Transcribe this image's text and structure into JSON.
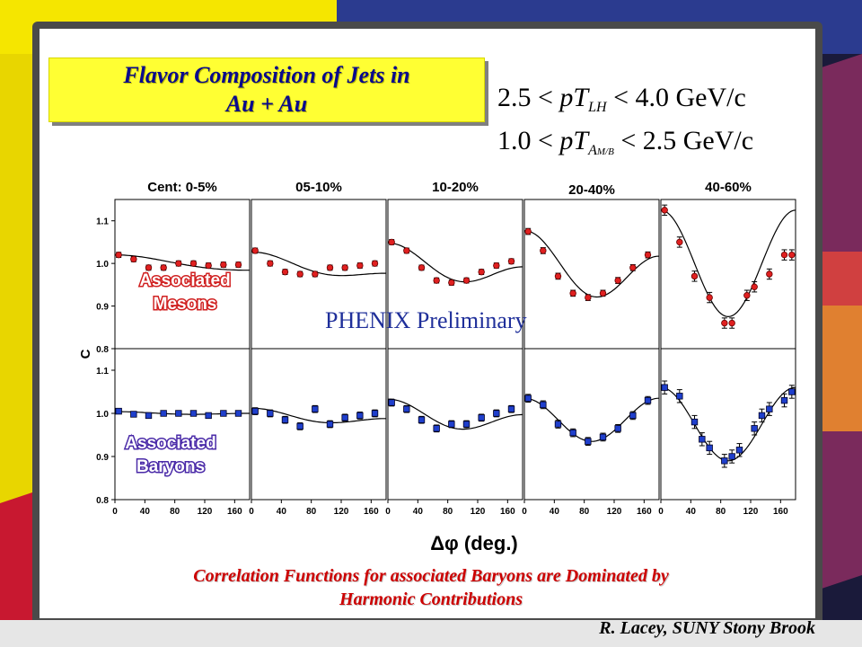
{
  "slide": {
    "title_line1": "Flavor Composition of Jets in",
    "title_line2": "Au + Au",
    "kinematics_line1": {
      "lhs": "2.5 <",
      "var": "pT",
      "sub": "LH",
      "rhs": "< 4.0 GeV/c"
    },
    "kinematics_line2": {
      "lhs": "1.0 <",
      "var": "pT",
      "sub": "A",
      "subsub": "M/B",
      "rhs": "< 2.5 GeV/c"
    },
    "preliminary": "PHENIX Preliminary",
    "footer_line1": "Correlation Functions for associated Baryons are Dominated by",
    "footer_line2": "Harmonic Contributions",
    "credit": "R. Lacey, SUNY Stony Brook",
    "colors": {
      "title_bg": "#ffff33",
      "title_text": "#0a0a8c",
      "footer_text": "#cc0000",
      "meson_marker": "#e02020",
      "baryon_marker": "#1f3fcc",
      "badge_text": "#ffffff",
      "badge_meson_stroke": "#d02020",
      "badge_baryon_stroke": "#4a2aa8"
    }
  },
  "chart_data": {
    "type": "scatter",
    "xlabel": "Δφ (deg.)",
    "ylabel": "C",
    "xlim": [
      0,
      180
    ],
    "ylim": [
      0.8,
      1.15
    ],
    "xticks": [
      "0",
      "40",
      "80",
      "120",
      "160"
    ],
    "yticks": [
      "0.8",
      "0.9",
      "1.0",
      "1.1"
    ],
    "panel_titles": [
      "Cent: 0-5%",
      "05-10%",
      "10-20%",
      "20-40%",
      "40-60%"
    ],
    "row_labels": [
      [
        "Associated",
        "Mesons"
      ],
      [
        "Associated",
        "Baryons"
      ]
    ],
    "x": [
      5,
      15,
      25,
      35,
      45,
      55,
      65,
      75,
      85,
      95,
      105,
      115,
      125,
      135,
      145,
      155,
      165,
      175
    ],
    "series": [
      {
        "name": "Associated Mesons",
        "marker": "circle",
        "panels": [
          {
            "x": [
              5,
              25,
              45,
              65,
              85,
              105,
              125,
              145,
              165
            ],
            "y": [
              1.02,
              1.01,
              0.99,
              0.99,
              1.0,
              1.0,
              0.995,
              0.997,
              0.997
            ],
            "err": 0.006,
            "fit": [
              1.0,
              0.018,
              0.002
            ]
          },
          {
            "x": [
              5,
              25,
              45,
              65,
              85,
              105,
              125,
              145,
              165
            ],
            "y": [
              1.03,
              1.0,
              0.98,
              0.975,
              0.975,
              0.99,
              0.99,
              0.995,
              1.0
            ],
            "err": 0.006,
            "fit": [
              0.99,
              0.025,
              0.012
            ]
          },
          {
            "x": [
              5,
              25,
              45,
              65,
              85,
              105,
              125,
              145,
              165
            ],
            "y": [
              1.05,
              1.03,
              0.99,
              0.96,
              0.955,
              0.96,
              0.98,
              0.995,
              1.005
            ],
            "err": 0.006,
            "fit": [
              0.99,
              0.028,
              0.03
            ]
          },
          {
            "x": [
              5,
              25,
              45,
              65,
              85,
              105,
              125,
              145,
              165
            ],
            "y": [
              1.075,
              1.03,
              0.97,
              0.93,
              0.92,
              0.93,
              0.96,
              0.99,
              1.02
            ],
            "err": 0.007,
            "fit": [
              0.985,
              0.03,
              0.062
            ]
          },
          {
            "x": [
              5,
              25,
              45,
              65,
              85,
              95,
              115,
              125,
              145,
              165,
              175
            ],
            "y": [
              1.125,
              1.05,
              0.97,
              0.92,
              0.86,
              0.86,
              0.925,
              0.945,
              0.975,
              1.02,
              1.02
            ],
            "err": 0.012,
            "fit": [
              1.0,
              0.0,
              0.125
            ]
          }
        ]
      },
      {
        "name": "Associated Baryons",
        "marker": "square",
        "panels": [
          {
            "x": [
              5,
              25,
              45,
              65,
              85,
              105,
              125,
              145,
              165
            ],
            "y": [
              1.005,
              0.998,
              0.995,
              1.0,
              1.0,
              1.0,
              0.995,
              1.0,
              1.0
            ],
            "err": 0.006,
            "fit": [
              1.0,
              0.002,
              0.002
            ]
          },
          {
            "x": [
              5,
              25,
              45,
              65,
              85,
              105,
              125,
              145,
              165
            ],
            "y": [
              1.005,
              1.0,
              0.985,
              0.97,
              1.01,
              0.975,
              0.99,
              0.995,
              1.0
            ],
            "err": 0.008,
            "fit": [
              0.99,
              0.012,
              0.01
            ]
          },
          {
            "x": [
              5,
              25,
              45,
              65,
              85,
              105,
              125,
              145,
              165
            ],
            "y": [
              1.025,
              1.01,
              0.985,
              0.965,
              0.975,
              0.975,
              0.99,
              1.0,
              1.01
            ],
            "err": 0.008,
            "fit": [
              0.99,
              0.018,
              0.025
            ]
          },
          {
            "x": [
              5,
              25,
              45,
              65,
              85,
              105,
              125,
              145,
              165
            ],
            "y": [
              1.035,
              1.02,
              0.975,
              0.955,
              0.935,
              0.945,
              0.965,
              0.995,
              1.03
            ],
            "err": 0.009,
            "fit": [
              0.985,
              0.0,
              0.05
            ]
          },
          {
            "x": [
              5,
              25,
              45,
              55,
              65,
              85,
              95,
              105,
              125,
              135,
              145,
              165,
              175
            ],
            "y": [
              1.06,
              1.04,
              0.98,
              0.94,
              0.92,
              0.89,
              0.9,
              0.915,
              0.965,
              0.995,
              1.01,
              1.03,
              1.05
            ],
            "err": 0.015,
            "fit": [
              0.975,
              0.0,
              0.085
            ]
          }
        ]
      }
    ]
  }
}
